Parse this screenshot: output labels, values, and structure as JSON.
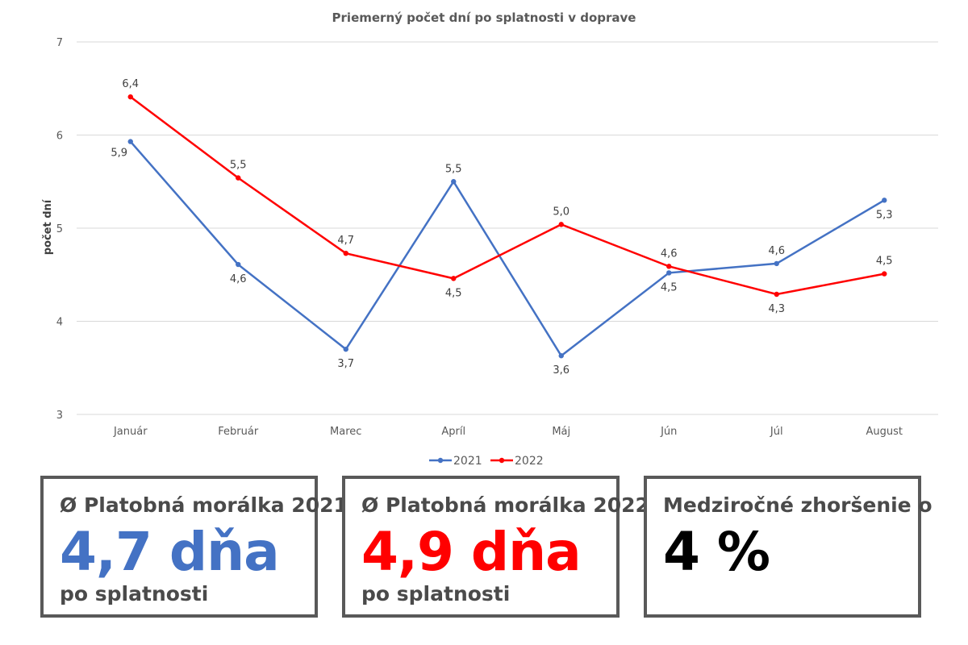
{
  "chart_data": {
    "type": "line",
    "title": "Priemerný počet dní po splatnosti v doprave",
    "xlabel": "",
    "ylabel": "počet dní",
    "categories": [
      "Január",
      "Február",
      "Marec",
      "Apríl",
      "Máj",
      "Jún",
      "Júl",
      "August"
    ],
    "ylim": [
      3,
      7
    ],
    "yticks": [
      "3",
      "4",
      "5",
      "6",
      "7"
    ],
    "grid": true,
    "legend": "bottom",
    "series": [
      {
        "name": "2021",
        "color": "#4472C4",
        "values": [
          5.93,
          4.61,
          3.7,
          5.5,
          3.63,
          4.52,
          4.62,
          5.3
        ],
        "labels": [
          "5,9",
          "4,6",
          "3,7",
          "5,5",
          "3,6",
          "4,5",
          "4,6",
          "5,3"
        ]
      },
      {
        "name": "2022",
        "color": "#FF0000",
        "values": [
          6.41,
          5.54,
          4.73,
          4.46,
          5.04,
          4.59,
          4.29,
          4.51
        ],
        "labels": [
          "6,4",
          "5,5",
          "4,7",
          "4,5",
          "5,0",
          "4,6",
          "4,3",
          "4,5"
        ]
      }
    ]
  },
  "cards": [
    {
      "header": "Ø Platobná morálka 2021",
      "value": "4,7 dňa",
      "sub": "po splatnosti",
      "color": "#4472C4"
    },
    {
      "header": "Ø Platobná morálka 2022",
      "value": "4,9 dňa",
      "sub": "po splatnosti",
      "color": "#FF0000"
    },
    {
      "header": "Medziročné zhoršenie o",
      "value": "4 %",
      "sub": "",
      "color": "#000000"
    }
  ]
}
